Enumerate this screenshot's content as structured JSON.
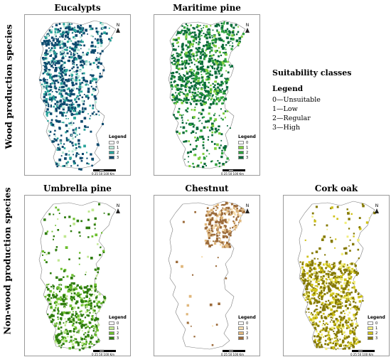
{
  "row_labels": {
    "top": "Wood production species",
    "bottom": "Non-wood production species"
  },
  "side_legend": {
    "title": "Suitability classes",
    "legend_title": "Legend",
    "classes": [
      "0—Unsuitable",
      "1—Low",
      "2—Regular",
      "3—High"
    ]
  },
  "panels": [
    {
      "id": "eucalypts",
      "title": "Eucalypts",
      "colors": [
        "#ffffff",
        "#b8e6d6",
        "#2aa39a",
        "#0d4a6e"
      ],
      "dominant_class": 3,
      "legend": {
        "title": "Legend",
        "labels": [
          "0",
          "1",
          "2",
          "3"
        ]
      }
    },
    {
      "id": "maritime-pine",
      "title": "Maritime pine",
      "colors": [
        "#ffffff",
        "#7fcf3f",
        "#2fa43e",
        "#0b6b3a"
      ],
      "dominant_class": 3,
      "legend": {
        "title": "Legend",
        "labels": [
          "0",
          "1",
          "2",
          "3"
        ]
      }
    },
    {
      "id": "umbrella-pine",
      "title": "Umbrella pine",
      "colors": [
        "#ffffff",
        "#bfe88f",
        "#6cbf2e",
        "#2f7d0f"
      ],
      "dominant_class": 3,
      "legend": {
        "title": "Legend",
        "labels": [
          "0",
          "1",
          "2",
          "3"
        ]
      }
    },
    {
      "id": "chestnut",
      "title": "Chestnut",
      "colors": [
        "#ffffff",
        "#f6deb0",
        "#e0b77c",
        "#9c6b3a"
      ],
      "dominant_class": 3,
      "legend": {
        "title": "Legend",
        "labels": [
          "0",
          "1",
          "2",
          "3"
        ]
      }
    },
    {
      "id": "cork-oak",
      "title": "Cork oak",
      "colors": [
        "#ffffff",
        "#f2ee7a",
        "#cfc218",
        "#867a05"
      ],
      "dominant_class": 3,
      "legend": {
        "title": "Legend",
        "labels": [
          "0",
          "1",
          "2",
          "3"
        ]
      }
    }
  ],
  "north_label": "N",
  "scale_labels": "0  25  50      100 Km"
}
